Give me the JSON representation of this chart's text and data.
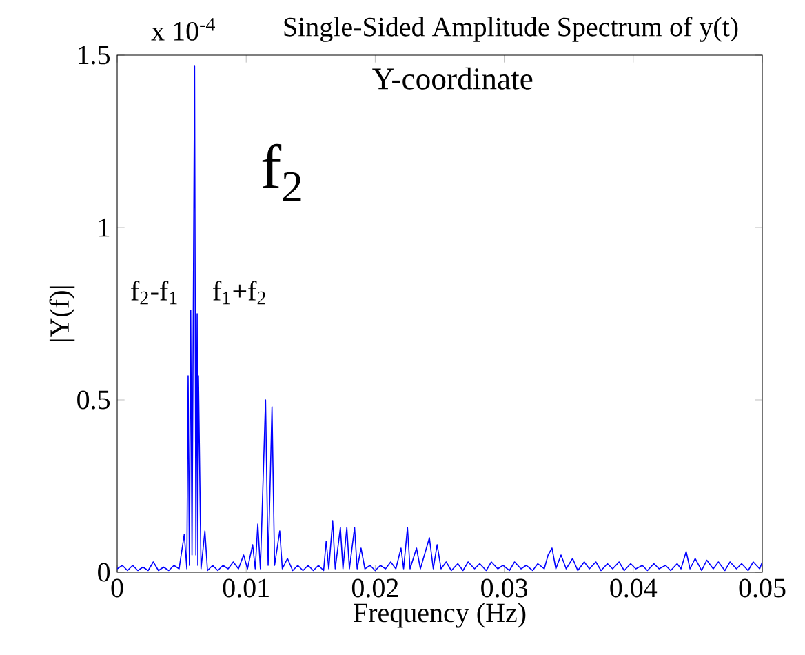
{
  "chart_data": {
    "type": "line",
    "title": "Single-Sided Amplitude Spectrum of y(t)",
    "xlabel": "Frequency (Hz)",
    "ylabel": "|Y(f)|",
    "annotations": [
      "x 10$^{-4}$",
      "Y-coordinate",
      "f$_{2}$",
      "f$_{2}$-f$_{1}$",
      "f$_{1}$+f$_{2}$"
    ],
    "xlim": [
      0,
      0.05
    ],
    "ylim": [
      0,
      1.5
    ],
    "xticks": [
      0,
      0.01,
      0.02,
      0.03,
      0.04,
      0.05
    ],
    "yticks": [
      0,
      0.5,
      1,
      1.5
    ],
    "grid": false,
    "legend": false,
    "marker": "none",
    "line_style": "solid",
    "series": [
      {
        "color": "#0000ff",
        "x": [
          0.0,
          0.0004,
          0.0008,
          0.0012,
          0.0016,
          0.002,
          0.0024,
          0.0028,
          0.0032,
          0.0036,
          0.004,
          0.0044,
          0.0048,
          0.0052,
          0.0054,
          0.0055,
          0.0056,
          0.0057,
          0.0058,
          0.00595,
          0.006,
          0.0061,
          0.0062,
          0.00625,
          0.0063,
          0.0065,
          0.0068,
          0.007,
          0.0074,
          0.0078,
          0.0082,
          0.0086,
          0.009,
          0.0094,
          0.0098,
          0.0101,
          0.0105,
          0.0107,
          0.0109,
          0.0111,
          0.0115,
          0.0117,
          0.012,
          0.0122,
          0.0126,
          0.0128,
          0.0132,
          0.0136,
          0.014,
          0.0144,
          0.0148,
          0.0152,
          0.0156,
          0.016,
          0.0162,
          0.0164,
          0.0167,
          0.0169,
          0.0173,
          0.0175,
          0.0178,
          0.018,
          0.0184,
          0.0186,
          0.0189,
          0.0192,
          0.0196,
          0.02,
          0.0204,
          0.0208,
          0.0212,
          0.0216,
          0.022,
          0.0222,
          0.0225,
          0.0227,
          0.0232,
          0.0235,
          0.0242,
          0.0245,
          0.0248,
          0.0251,
          0.0255,
          0.0259,
          0.0264,
          0.0268,
          0.0272,
          0.0277,
          0.0281,
          0.0286,
          0.029,
          0.0295,
          0.0299,
          0.0304,
          0.0308,
          0.0313,
          0.0317,
          0.0322,
          0.0326,
          0.0331,
          0.0334,
          0.0337,
          0.034,
          0.0344,
          0.0348,
          0.0353,
          0.0357,
          0.0362,
          0.0366,
          0.0371,
          0.0375,
          0.038,
          0.0384,
          0.0389,
          0.0393,
          0.0398,
          0.0402,
          0.0407,
          0.0411,
          0.0416,
          0.042,
          0.0425,
          0.0429,
          0.0434,
          0.0437,
          0.0441,
          0.0444,
          0.0448,
          0.0453,
          0.0457,
          0.0462,
          0.0466,
          0.0471,
          0.0475,
          0.048,
          0.0484,
          0.0489,
          0.0493,
          0.0498,
          0.05
        ],
        "values": [
          0.01,
          0.02,
          0.005,
          0.02,
          0.005,
          0.015,
          0.005,
          0.03,
          0.005,
          0.015,
          0.005,
          0.02,
          0.01,
          0.11,
          0.01,
          0.57,
          0.02,
          0.76,
          0.05,
          1.11,
          1.47,
          0.05,
          0.75,
          0.02,
          0.57,
          0.01,
          0.12,
          0.005,
          0.02,
          0.005,
          0.02,
          0.01,
          0.03,
          0.01,
          0.05,
          0.01,
          0.08,
          0.01,
          0.14,
          0.01,
          0.5,
          0.02,
          0.48,
          0.02,
          0.12,
          0.01,
          0.04,
          0.005,
          0.02,
          0.005,
          0.02,
          0.005,
          0.02,
          0.005,
          0.09,
          0.01,
          0.15,
          0.01,
          0.13,
          0.01,
          0.13,
          0.01,
          0.13,
          0.01,
          0.07,
          0.01,
          0.02,
          0.005,
          0.02,
          0.01,
          0.03,
          0.01,
          0.07,
          0.01,
          0.13,
          0.01,
          0.07,
          0.01,
          0.1,
          0.01,
          0.08,
          0.01,
          0.03,
          0.005,
          0.025,
          0.005,
          0.03,
          0.01,
          0.025,
          0.005,
          0.03,
          0.01,
          0.02,
          0.005,
          0.03,
          0.01,
          0.02,
          0.005,
          0.025,
          0.01,
          0.05,
          0.07,
          0.01,
          0.05,
          0.01,
          0.04,
          0.005,
          0.03,
          0.01,
          0.03,
          0.005,
          0.025,
          0.01,
          0.03,
          0.005,
          0.025,
          0.01,
          0.02,
          0.005,
          0.025,
          0.01,
          0.02,
          0.005,
          0.025,
          0.01,
          0.06,
          0.01,
          0.04,
          0.005,
          0.035,
          0.01,
          0.03,
          0.005,
          0.03,
          0.01,
          0.025,
          0.005,
          0.03,
          0.01,
          0.03
        ]
      }
    ]
  }
}
